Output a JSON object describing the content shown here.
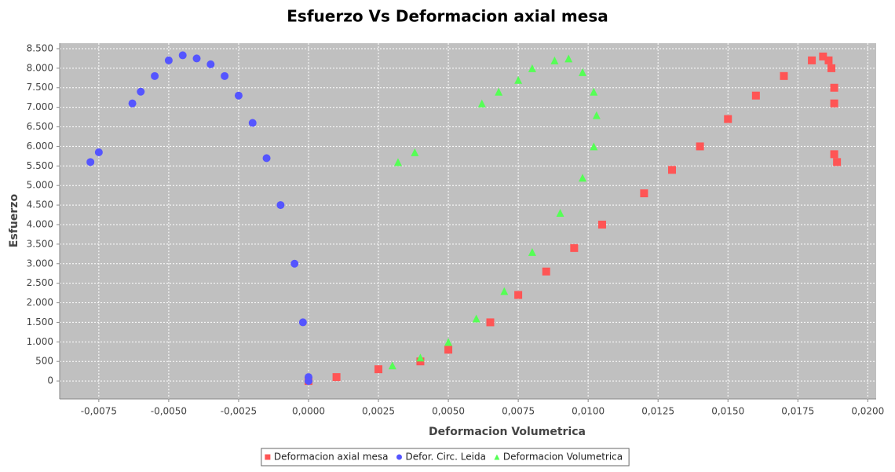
{
  "chart_data": {
    "type": "scatter",
    "title": "Esfuerzo Vs Deformacion axial mesa",
    "x_label": "Deformacion Volumetrica",
    "y_label": "Esfuerzo",
    "xlim": [
      -0.0089,
      0.0203
    ],
    "ylim": [
      -460,
      8640
    ],
    "xticks": [
      {
        "value": -0.0075,
        "label": "-0,0075"
      },
      {
        "value": -0.005,
        "label": "-0,0050"
      },
      {
        "value": -0.0025,
        "label": "-0,0025"
      },
      {
        "value": 0,
        "label": "0,0000"
      },
      {
        "value": 0.0025,
        "label": "0,0025"
      },
      {
        "value": 0.005,
        "label": "0,0050"
      },
      {
        "value": 0.0075,
        "label": "0,0075"
      },
      {
        "value": 0.01,
        "label": "0,0100"
      },
      {
        "value": 0.0125,
        "label": "0,0125"
      },
      {
        "value": 0.015,
        "label": "0,0150"
      },
      {
        "value": 0.0175,
        "label": "0,0175"
      },
      {
        "value": 0.02,
        "label": "0,0200"
      }
    ],
    "yticks": [
      0,
      500,
      {
        "value": 1000,
        "label": "1.000"
      },
      {
        "value": 1500,
        "label": "1.500"
      },
      {
        "value": 2000,
        "label": "2.000"
      },
      {
        "value": 2500,
        "label": "2.500"
      },
      {
        "value": 3000,
        "label": "3.000"
      },
      {
        "value": 3500,
        "label": "3.500"
      },
      {
        "value": 4000,
        "label": "4.000"
      },
      {
        "value": 4500,
        "label": "4.500"
      },
      {
        "value": 5000,
        "label": "5.000"
      },
      {
        "value": 5500,
        "label": "5.500"
      },
      {
        "value": 6000,
        "label": "6.000"
      },
      {
        "value": 6500,
        "label": "6.500"
      },
      {
        "value": 7000,
        "label": "7.000"
      },
      {
        "value": 7500,
        "label": "7.500"
      },
      {
        "value": 8000,
        "label": "8.000"
      },
      {
        "value": 8500,
        "label": "8.500"
      }
    ],
    "grid": true,
    "series": [
      {
        "name": "Deformacion axial mesa",
        "color": "#ff5555",
        "marker": "square",
        "x": [
          0,
          0.001,
          0.0025,
          0.004,
          0.005,
          0.0065,
          0.0075,
          0.0085,
          0.0095,
          0.0105,
          0.012,
          0.013,
          0.014,
          0.015,
          0.016,
          0.017,
          0.018,
          0.0184,
          0.0186,
          0.0187,
          0.0188,
          0.0188,
          0.0188,
          0.0189
        ],
        "values": [
          0,
          100,
          300,
          500,
          800,
          1500,
          2200,
          2800,
          3400,
          4000,
          4800,
          5400,
          6000,
          6700,
          7300,
          7800,
          8200,
          8300,
          8200,
          8000,
          7500,
          7100,
          5800,
          5600
        ]
      },
      {
        "name": "Defor. Circ. Leida",
        "color": "#5555ff",
        "marker": "circle",
        "x": [
          0,
          0,
          -0.0002,
          -0.0005,
          -0.001,
          -0.0015,
          -0.002,
          -0.0025,
          -0.003,
          -0.0035,
          -0.004,
          -0.0045,
          -0.005,
          -0.0055,
          -0.006,
          -0.0063,
          -0.0075,
          -0.0078
        ],
        "values": [
          0,
          100,
          1500,
          3000,
          4500,
          5700,
          6600,
          7300,
          7800,
          8100,
          8250,
          8330,
          8200,
          7800,
          7400,
          7100,
          5850,
          5600
        ]
      },
      {
        "name": "Deformacion Volumetrica",
        "color": "#55ff55",
        "marker": "triangle",
        "x": [
          0.003,
          0.004,
          0.005,
          0.006,
          0.007,
          0.008,
          0.009,
          0.0098,
          0.0102,
          0.0103,
          0.0102,
          0.0098,
          0.0093,
          0.0088,
          0.008,
          0.0075,
          0.0068,
          0.0062,
          0.0038,
          0.0032
        ],
        "values": [
          400,
          600,
          1000,
          1600,
          2300,
          3300,
          4300,
          5200,
          6000,
          6800,
          7400,
          7900,
          8250,
          8200,
          8000,
          7700,
          7400,
          7100,
          5850,
          5600
        ]
      }
    ]
  }
}
